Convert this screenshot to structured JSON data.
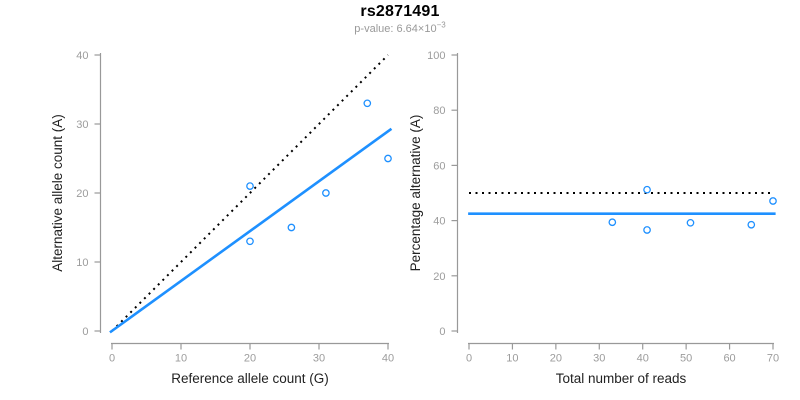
{
  "header": {
    "title": "rs2871491",
    "pvalue_label": "p-value: 6.64×10",
    "pvalue_exponent": "−3"
  },
  "colors": {
    "accent_blue": "#1E90FF",
    "dotted_black": "#000000",
    "axis_gray": "#999999",
    "tick_label_gray": "#9C9C9C",
    "axis_label_dark": "#222222",
    "subtitle_gray": "#999999"
  },
  "chart_data": [
    {
      "type": "scatter",
      "name": "allele-count-scatter",
      "xlabel": "Reference allele count (G)",
      "ylabel": "Alternative allele count (A)",
      "xlim": [
        0,
        40
      ],
      "ylim": [
        0,
        40
      ],
      "xticks": [
        0,
        10,
        20,
        30,
        40
      ],
      "yticks": [
        0,
        10,
        20,
        30,
        40
      ],
      "grid": false,
      "legend": false,
      "points": [
        [
          20,
          13
        ],
        [
          20,
          21
        ],
        [
          26,
          15
        ],
        [
          31,
          20
        ],
        [
          37,
          33
        ],
        [
          40,
          25
        ]
      ],
      "lines": [
        {
          "name": "identity-line",
          "style": "dotted",
          "color": "#000000",
          "from": [
            0,
            0
          ],
          "to": [
            40,
            40
          ]
        },
        {
          "name": "fit-line",
          "style": "solid",
          "color": "#1E90FF",
          "from": [
            -0.3,
            -0.2
          ],
          "to": [
            40.5,
            29.3
          ]
        }
      ]
    },
    {
      "type": "scatter",
      "name": "percentage-scatter",
      "xlabel": "Total number of reads",
      "ylabel": "Percentage alternative (A)",
      "xlim": [
        0,
        70
      ],
      "ylim": [
        0,
        100
      ],
      "xticks": [
        0,
        10,
        20,
        30,
        40,
        50,
        60,
        70
      ],
      "yticks": [
        0,
        20,
        40,
        60,
        80,
        100
      ],
      "grid": false,
      "legend": false,
      "points": [
        [
          33,
          39.4
        ],
        [
          41,
          36.6
        ],
        [
          41,
          51.2
        ],
        [
          51,
          39.2
        ],
        [
          65,
          38.5
        ],
        [
          70,
          47.1
        ]
      ],
      "lines": [
        {
          "name": "expected-50-line",
          "style": "dotted",
          "color": "#000000",
          "from": [
            0,
            50
          ],
          "to": [
            69.6,
            50
          ]
        },
        {
          "name": "mean-line",
          "style": "solid",
          "color": "#1E90FF",
          "from": [
            -0.2,
            42.5
          ],
          "to": [
            70.6,
            42.5
          ]
        }
      ]
    }
  ]
}
